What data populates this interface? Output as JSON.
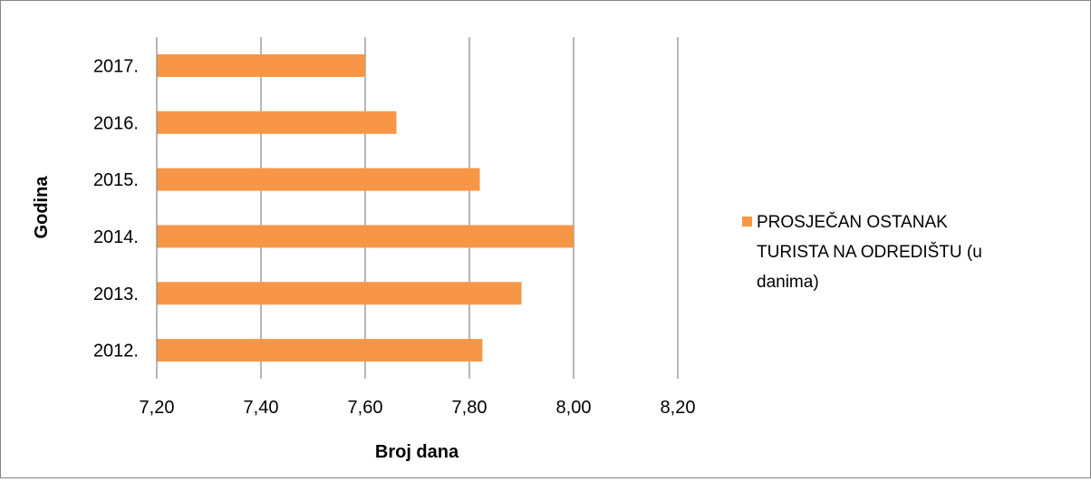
{
  "chart_data": {
    "type": "bar",
    "orientation": "horizontal",
    "categories": [
      "2012.",
      "2013.",
      "2014.",
      "2015.",
      "2016.",
      "2017."
    ],
    "series": [
      {
        "name": "PROSJEČAN OSTANAK TURISTA NA ODREDIŠTU (u danima)",
        "values": [
          7.825,
          7.9,
          8.0,
          7.82,
          7.66,
          7.6
        ],
        "color": "#F79646"
      }
    ],
    "xlabel": "Broj dana",
    "ylabel": "Godina",
    "xlim": [
      7.2,
      8.2
    ],
    "x_ticks": [
      "7,20",
      "7,40",
      "7,60",
      "7,80",
      "8,00",
      "8,20"
    ],
    "x_tick_values": [
      7.2,
      7.4,
      7.6,
      7.8,
      8.0,
      8.2
    ],
    "grid": "vertical",
    "legend_position": "right",
    "legend_lines": [
      "PROSJEČAN OSTANAK",
      "TURISTA NA ODREDIŠTU (u",
      "danima)"
    ]
  },
  "colors": {
    "bar": "#F79646",
    "grid": "#868686",
    "frame": "#868686"
  }
}
